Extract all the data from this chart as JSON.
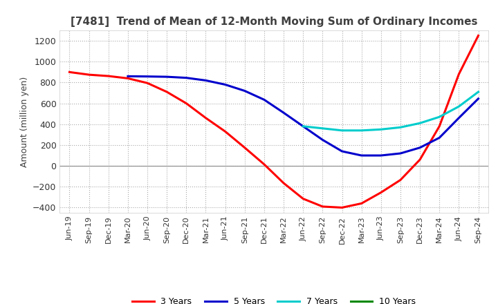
{
  "title": "[7481]  Trend of Mean of 12-Month Moving Sum of Ordinary Incomes",
  "ylabel": "Amount (million yen)",
  "ylim": [
    -450,
    1300
  ],
  "yticks": [
    -400,
    -200,
    0,
    200,
    400,
    600,
    800,
    1000,
    1200
  ],
  "background_color": "#ffffff",
  "plot_bg_color": "#f0f0f0",
  "grid_color": "#aaaaaa",
  "title_color": "#404040",
  "x_labels": [
    "Jun-19",
    "Sep-19",
    "Dec-19",
    "Mar-20",
    "Jun-20",
    "Sep-20",
    "Dec-20",
    "Mar-21",
    "Jun-21",
    "Sep-21",
    "Dec-21",
    "Mar-22",
    "Jun-22",
    "Sep-22",
    "Dec-22",
    "Mar-23",
    "Jun-23",
    "Sep-23",
    "Dec-23",
    "Mar-24",
    "Jun-24",
    "Sep-24"
  ],
  "series": [
    {
      "label": "3 Years",
      "color": "#ff0000",
      "data": [
        900,
        875,
        862,
        840,
        795,
        710,
        600,
        460,
        330,
        175,
        15,
        -165,
        -315,
        -390,
        -400,
        -360,
        -255,
        -135,
        60,
        380,
        880,
        1250
      ]
    },
    {
      "label": "5 Years",
      "color": "#0000cc",
      "data": [
        null,
        null,
        null,
        860,
        858,
        855,
        845,
        820,
        780,
        720,
        635,
        510,
        380,
        250,
        140,
        100,
        100,
        120,
        175,
        270,
        460,
        645
      ]
    },
    {
      "label": "7 Years",
      "color": "#00cccc",
      "data": [
        null,
        null,
        null,
        null,
        null,
        null,
        null,
        null,
        null,
        null,
        null,
        null,
        380,
        360,
        340,
        340,
        350,
        370,
        410,
        470,
        570,
        710
      ]
    },
    {
      "label": "10 Years",
      "color": "#008800",
      "data": [
        null,
        null,
        null,
        null,
        null,
        null,
        null,
        null,
        null,
        null,
        null,
        null,
        null,
        null,
        null,
        null,
        null,
        null,
        null,
        null,
        null,
        null
      ]
    }
  ]
}
